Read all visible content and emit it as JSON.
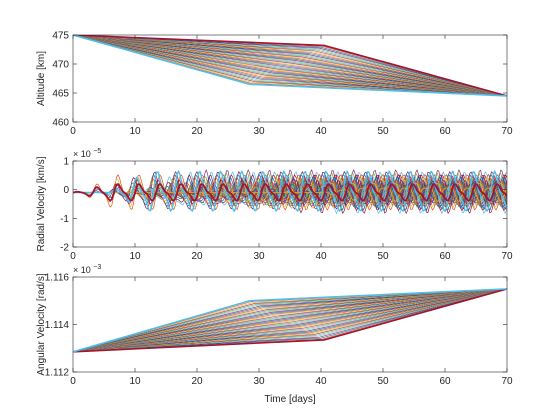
{
  "chart_data": [
    {
      "type": "line",
      "ylabel": "Altitude [km]",
      "xlim": [
        0,
        70
      ],
      "ylim": [
        460,
        475
      ],
      "xticks": [
        0,
        10,
        20,
        30,
        40,
        50,
        60,
        70
      ],
      "yticks": [
        460,
        465,
        470,
        475
      ],
      "exponent_label": "",
      "grid": false,
      "legend": "none",
      "series_count": 45,
      "family": {
        "start_value": 475,
        "end_value": 464.5,
        "knee_x_range": [
          28.5,
          40.5
        ],
        "knee_value_range": [
          466.5,
          473.2
        ]
      },
      "highlight_series": [
        {
          "color": "#A2142F",
          "points": [
            [
              0,
              475
            ],
            [
              40.5,
              473.2
            ],
            [
              70,
              464.5
            ]
          ]
        },
        {
          "color": "#4DBEEE",
          "points": [
            [
              0,
              475
            ],
            [
              28.5,
              466.5
            ],
            [
              70,
              464.5
            ]
          ]
        }
      ]
    },
    {
      "type": "line",
      "ylabel": "Radial Velocity [km/s]",
      "xlim": [
        0,
        70
      ],
      "ylim": [
        -2,
        1
      ],
      "xticks": [
        0,
        10,
        20,
        30,
        40,
        50,
        60,
        70
      ],
      "yticks": [
        -2,
        -1,
        0,
        1
      ],
      "exponent_label": "× 10 −5",
      "exponent_base": "× 10",
      "exponent_power": "−5",
      "grid": false,
      "legend": "none",
      "series_count": 45,
      "family": {
        "baseline": -0.1,
        "oscillation_period_days": 3.4,
        "amplitude_range": [
          0.15,
          0.6
        ],
        "onset_x_range": [
          0,
          40
        ]
      },
      "highlight_series": [
        {
          "color": "#A2142F",
          "amplitude": 0.25
        },
        {
          "color": "#4DBEEE",
          "amplitude": 0.6
        }
      ]
    },
    {
      "type": "line",
      "ylabel": "Angular Velocity [rad/s]",
      "xlabel": "Time [days]",
      "xlim": [
        0,
        70
      ],
      "ylim": [
        1.112,
        1.116
      ],
      "xticks": [
        0,
        10,
        20,
        30,
        40,
        50,
        60,
        70
      ],
      "yticks": [
        1.112,
        1.114,
        1.116
      ],
      "exponent_label": "× 10 −3",
      "exponent_base": "× 10",
      "exponent_power": "−3",
      "grid": false,
      "legend": "none",
      "series_count": 45,
      "family": {
        "start_value": 1.11285,
        "end_value": 1.1155,
        "knee_x_range": [
          28.5,
          40.5
        ],
        "knee_value_range": [
          1.11335,
          1.115
        ]
      },
      "highlight_series": [
        {
          "color": "#A2142F",
          "points": [
            [
              0,
              1.11285
            ],
            [
              40.5,
              1.11335
            ],
            [
              70,
              1.1155
            ]
          ]
        },
        {
          "color": "#4DBEEE",
          "points": [
            [
              0,
              1.11285
            ],
            [
              28.5,
              1.115
            ],
            [
              70,
              1.1155
            ]
          ]
        }
      ]
    }
  ],
  "palette": [
    "#0072BD",
    "#D95319",
    "#EDB120",
    "#7E2F8E",
    "#77AC30",
    "#4DBEEE",
    "#A2142F"
  ]
}
